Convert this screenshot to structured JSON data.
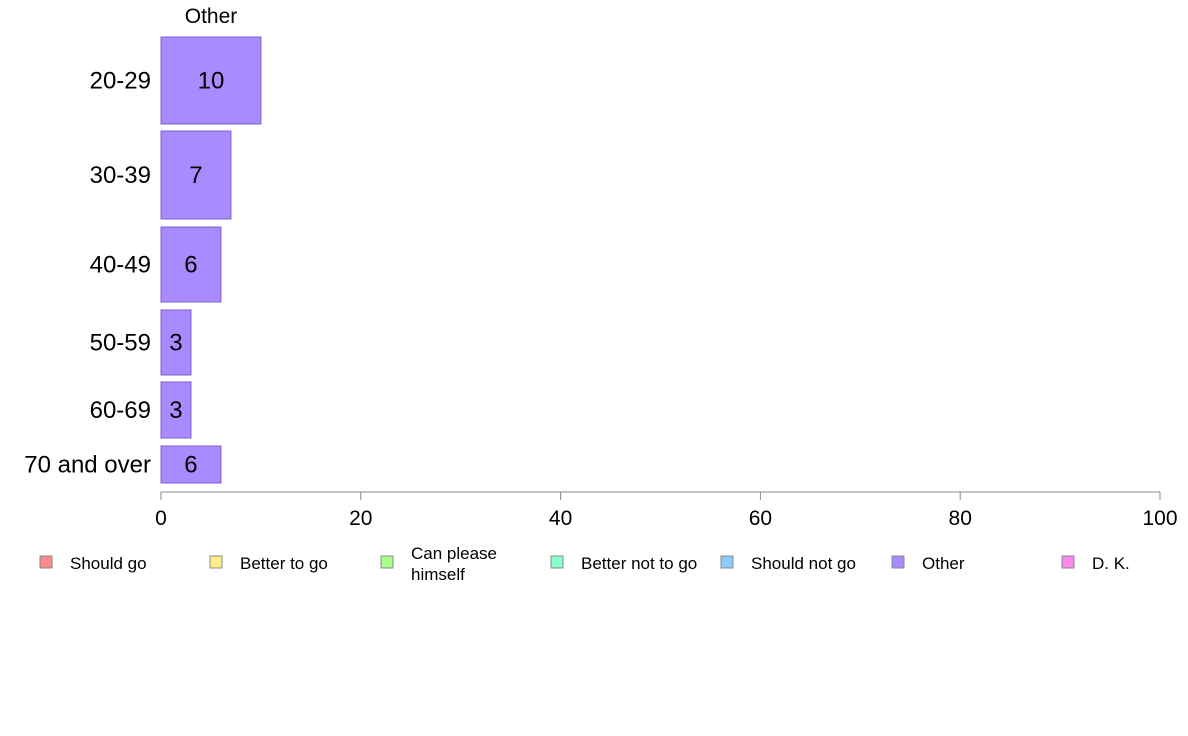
{
  "chart_data": {
    "type": "bar",
    "orientation": "horizontal",
    "series_title": "Other",
    "categories": [
      "20-29",
      "30-39",
      "40-49",
      "50-59",
      "60-69",
      "70 and over"
    ],
    "values": [
      10,
      7,
      6,
      3,
      3,
      6
    ],
    "xlim": [
      0,
      100
    ],
    "xticks": [
      0,
      20,
      40,
      60,
      80,
      100
    ],
    "grid": false,
    "legend_position": "bottom",
    "legend": [
      {
        "label": "Should go",
        "color": "#ff8a8a"
      },
      {
        "label": "Better to go",
        "color": "#ffee8a"
      },
      {
        "label": "Can please himself",
        "color": "#aaff8a"
      },
      {
        "label": "Better not to go",
        "color": "#8affcc"
      },
      {
        "label": "Should not go",
        "color": "#8accff"
      },
      {
        "label": "Other",
        "color": "#aa8aff"
      },
      {
        "label": "D. K.",
        "color": "#ff8aee"
      }
    ],
    "bar_color": "#aa8aff",
    "bar_stroke": "#7a62cc"
  }
}
